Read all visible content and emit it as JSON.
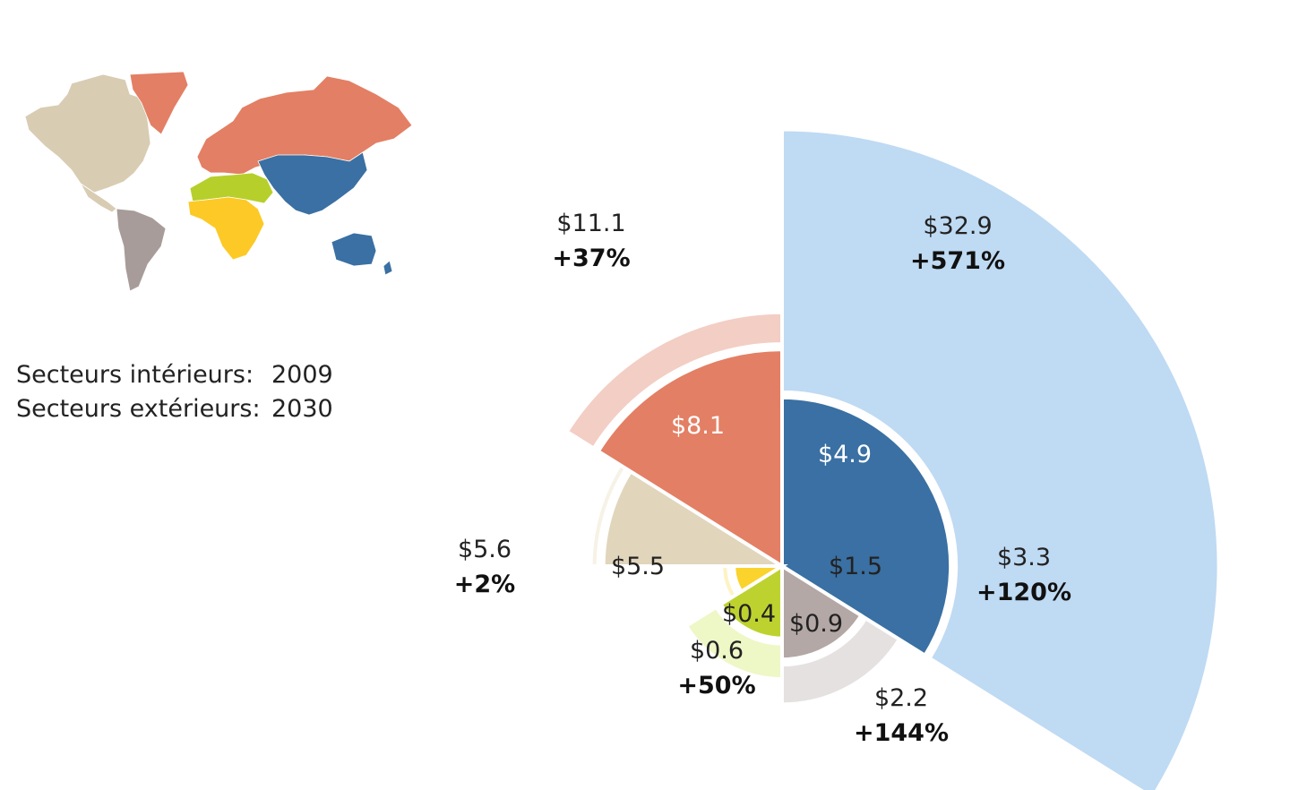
{
  "legend": {
    "inner_label": "Secteurs intérieurs:",
    "inner_year": "2009",
    "outer_label": "Secteurs extérieurs:",
    "outer_year": "2030"
  },
  "chart_data": {
    "type": "polar-area",
    "series": [
      {
        "name": "inner",
        "year": "2009"
      },
      {
        "name": "outer",
        "year": "2030"
      }
    ],
    "sectors": [
      {
        "region": "asia-pacific",
        "value_2009": 4.9,
        "value_2030": 32.9,
        "label_2009": "$4.9",
        "label_2030": "$32.9",
        "growth": "+571%",
        "color_inner": "#3a70a3",
        "color_outer": "#bfdaf3"
      },
      {
        "region": "south-america",
        "value_2009": 1.5,
        "value_2030": 3.3,
        "label_2009": "$1.5",
        "label_2030": "$3.3",
        "growth": "+120%",
        "color_inner": "#b3a8a6",
        "color_outer": "#e5e1e0"
      },
      {
        "region": "middle-east",
        "value_2009": 0.9,
        "value_2030": 2.2,
        "label_2009": "$0.9",
        "label_2030": "$2.2",
        "growth": "+144%",
        "color_inner": "#bed22f",
        "color_outer": "#eef7c6"
      },
      {
        "region": "africa",
        "value_2009": 0.4,
        "value_2030": 0.6,
        "label_2009": "$0.4",
        "label_2030": "$0.6",
        "growth": "+50%",
        "color_inner": "#fad32c",
        "color_outer": "#fdf3c3"
      },
      {
        "region": "north-america",
        "value_2009": 5.5,
        "value_2030": 5.6,
        "label_2009": "$5.5",
        "label_2030": "$5.6",
        "growth": "+2%",
        "color_inner": "#e1d5bc",
        "color_outer": "#f6f2e6"
      },
      {
        "region": "europe",
        "value_2009": 8.1,
        "value_2030": 11.1,
        "label_2009": "$8.1",
        "label_2030": "$11.1",
        "growth": "+37%",
        "color_inner": "#e37f64",
        "color_outer": "#f3cec4"
      }
    ]
  },
  "map_colors": {
    "north_america": "#d8ccb3",
    "greenland": "#e37f64",
    "europe_russia": "#e37f64",
    "south_america": "#a79c99",
    "africa": "#fcc926",
    "middle_east": "#b7cf2a",
    "asia": "#3a70a3",
    "oceania": "#3a70a3"
  }
}
